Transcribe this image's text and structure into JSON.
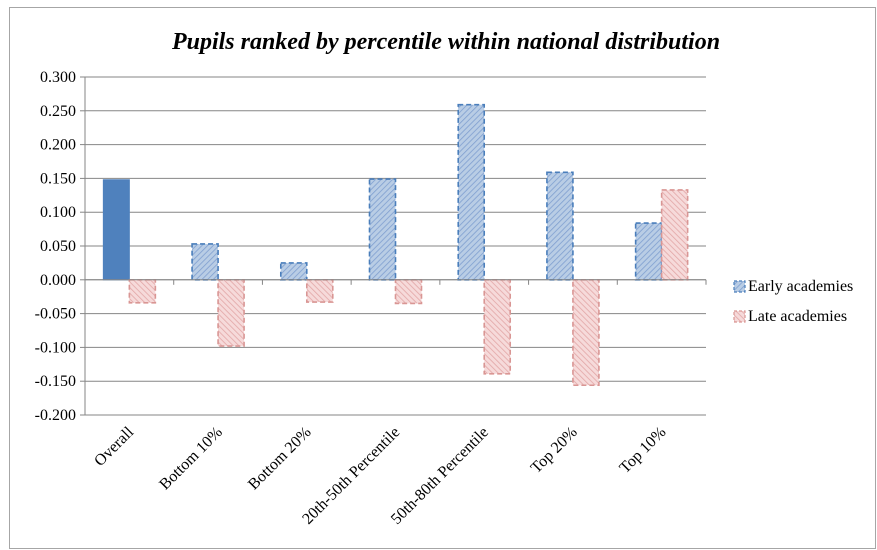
{
  "chart_data": {
    "type": "bar",
    "title": "Pupils ranked by percentile within national distribution",
    "xlabel": "",
    "ylabel": "",
    "categories": [
      "Overall",
      "Bottom 10%",
      "Bottom 20%",
      "20th-50th Percentile",
      "50th-80th Percentile",
      "Top 20%",
      "Top 10%"
    ],
    "series": [
      {
        "name": "Early academies",
        "values": [
          0.148,
          0.053,
          0.025,
          0.149,
          0.259,
          0.159,
          0.084
        ]
      },
      {
        "name": "Late academies",
        "values": [
          -0.034,
          -0.098,
          -0.033,
          -0.035,
          -0.139,
          -0.156,
          0.133
        ]
      }
    ],
    "ylim": [
      -0.2,
      0.3
    ],
    "yticks": [
      0.3,
      0.25,
      0.2,
      0.15,
      0.1,
      0.05,
      0.0,
      -0.05,
      -0.1,
      -0.15,
      -0.2
    ],
    "ytick_labels": [
      "0.300",
      "0.250",
      "0.200",
      "0.150",
      "0.100",
      "0.050",
      "0.000",
      "-0.050",
      "-0.100",
      "-0.150",
      "-0.200"
    ],
    "grid": true,
    "legend_position": "right",
    "colors": {
      "early_solid": "#4f81bd",
      "early_hatch_fill": "#b9cde5",
      "early_border": "#4a7ebb",
      "late_hatch_fill": "#f2c4c4",
      "late_border": "#d99694",
      "grid": "#868686",
      "axis": "#868686"
    },
    "notes": {
      "overall_early_style": "solid",
      "other_bars_style": "hatched-dashed"
    }
  }
}
